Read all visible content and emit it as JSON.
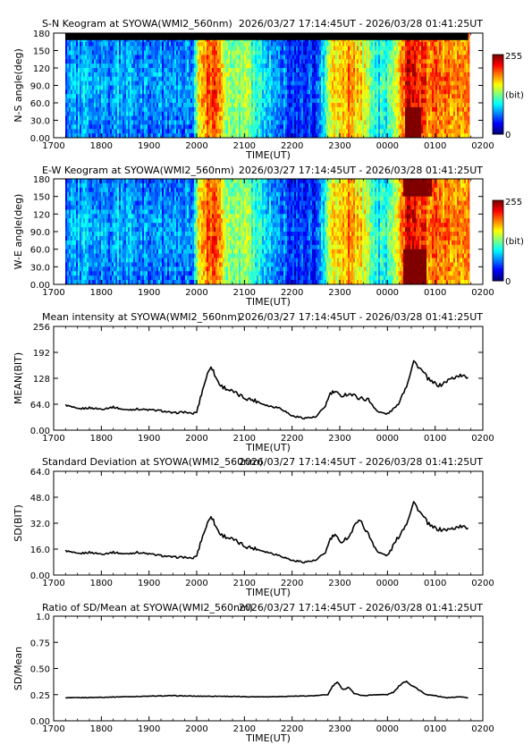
{
  "chart_data": [
    {
      "type": "heatmap",
      "title": "S-N Keogram at SYOWA(WMI2_560nm)",
      "subtitle": "2026/03/27 17:14:45UT - 2026/03/28 01:41:25UT",
      "xlabel": "TIME(UT)",
      "ylabel": "N-S angle(deg)",
      "xlim": [
        17.0,
        26.0
      ],
      "x_ticks": [
        "1700",
        "1800",
        "1900",
        "2000",
        "2100",
        "2200",
        "2300",
        "0000",
        "0100",
        "0200"
      ],
      "ylim": [
        0,
        180
      ],
      "y_ticks": [
        "0.00",
        "30.0",
        "60.0",
        "90.0",
        "120",
        "150",
        "180"
      ],
      "data_range_hours": [
        17.246,
        25.69
      ],
      "colorbar": {
        "min": "0",
        "max": "255",
        "unit": "(bit)"
      },
      "activity": [
        [
          17.25,
          0.25
        ],
        [
          17.6,
          0.34
        ],
        [
          18.0,
          0.3
        ],
        [
          18.5,
          0.31
        ],
        [
          19.0,
          0.3
        ],
        [
          19.5,
          0.26
        ],
        [
          19.9,
          0.3
        ],
        [
          20.05,
          0.72
        ],
        [
          20.35,
          0.88
        ],
        [
          20.55,
          0.6
        ],
        [
          21.0,
          0.52
        ],
        [
          21.5,
          0.35
        ],
        [
          22.0,
          0.2
        ],
        [
          22.5,
          0.19
        ],
        [
          22.8,
          0.62
        ],
        [
          23.2,
          0.76
        ],
        [
          23.5,
          0.62
        ],
        [
          23.8,
          0.4
        ],
        [
          24.1,
          0.5
        ],
        [
          24.4,
          0.94
        ],
        [
          24.9,
          0.8
        ],
        [
          25.5,
          0.75
        ],
        [
          25.69,
          0.75
        ]
      ],
      "features": {
        "black_band_deg": [
          168,
          180
        ],
        "bright_region": {
          "x": [
            24.35,
            24.7
          ],
          "deg": [
            0,
            55
          ]
        }
      }
    },
    {
      "type": "heatmap",
      "title": "E-W Keogram at SYOWA(WMI2_560nm)",
      "subtitle": "2026/03/27 17:14:45UT - 2026/03/28 01:41:25UT",
      "xlabel": "TIME(UT)",
      "ylabel": "W-E angle(deg)",
      "xlim": [
        17.0,
        26.0
      ],
      "x_ticks": [
        "1700",
        "1800",
        "1900",
        "2000",
        "2100",
        "2200",
        "2300",
        "0000",
        "0100",
        "0200"
      ],
      "ylim": [
        0,
        180
      ],
      "y_ticks": [
        "0.00",
        "30.0",
        "60.0",
        "90.0",
        "120",
        "150",
        "180"
      ],
      "data_range_hours": [
        17.246,
        25.69
      ],
      "colorbar": {
        "min": "0",
        "max": "255",
        "unit": "(bit)"
      },
      "activity": [
        [
          17.25,
          0.25
        ],
        [
          17.6,
          0.34
        ],
        [
          18.0,
          0.3
        ],
        [
          18.5,
          0.31
        ],
        [
          19.0,
          0.3
        ],
        [
          19.5,
          0.26
        ],
        [
          19.9,
          0.3
        ],
        [
          20.05,
          0.72
        ],
        [
          20.35,
          0.88
        ],
        [
          20.55,
          0.6
        ],
        [
          21.0,
          0.52
        ],
        [
          21.5,
          0.35
        ],
        [
          22.0,
          0.2
        ],
        [
          22.5,
          0.19
        ],
        [
          22.8,
          0.62
        ],
        [
          23.2,
          0.76
        ],
        [
          23.5,
          0.62
        ],
        [
          23.8,
          0.4
        ],
        [
          24.1,
          0.5
        ],
        [
          24.4,
          0.94
        ],
        [
          24.9,
          0.8
        ],
        [
          25.5,
          0.75
        ],
        [
          25.69,
          0.75
        ]
      ],
      "features": {
        "bright_regions": [
          {
            "x": [
              24.3,
              24.9
            ],
            "deg": [
              150,
              180
            ]
          },
          {
            "x": [
              24.3,
              24.8
            ],
            "deg": [
              0,
              60
            ]
          }
        ]
      }
    },
    {
      "type": "line",
      "title": "Mean intensity at SYOWA(WMI2_560nm)",
      "subtitle": "2026/03/27 17:14:45UT - 2026/03/28 01:41:25UT",
      "xlabel": "TIME(UT)",
      "ylabel": "MEAN(BIT)",
      "xlim": [
        17.0,
        26.0
      ],
      "x_ticks": [
        "1700",
        "1800",
        "1900",
        "2000",
        "2100",
        "2200",
        "2300",
        "0000",
        "0100",
        "0200"
      ],
      "ylim": [
        0,
        256
      ],
      "y_ticks": [
        "0.00",
        "64.0",
        "128",
        "192",
        "256"
      ],
      "series": [
        {
          "values": [
            [
              17.25,
              62
            ],
            [
              17.5,
              52
            ],
            [
              17.75,
              55
            ],
            [
              18.0,
              52
            ],
            [
              18.25,
              57
            ],
            [
              18.5,
              50
            ],
            [
              18.75,
              52
            ],
            [
              19.0,
              50
            ],
            [
              19.25,
              48
            ],
            [
              19.5,
              42
            ],
            [
              19.75,
              45
            ],
            [
              19.9,
              40
            ],
            [
              20.0,
              45
            ],
            [
              20.1,
              90
            ],
            [
              20.2,
              130
            ],
            [
              20.3,
              160
            ],
            [
              20.4,
              130
            ],
            [
              20.5,
              110
            ],
            [
              20.75,
              95
            ],
            [
              21.0,
              80
            ],
            [
              21.25,
              72
            ],
            [
              21.5,
              60
            ],
            [
              21.75,
              55
            ],
            [
              22.0,
              35
            ],
            [
              22.25,
              30
            ],
            [
              22.5,
              32
            ],
            [
              22.7,
              60
            ],
            [
              22.8,
              90
            ],
            [
              22.9,
              95
            ],
            [
              23.0,
              85
            ],
            [
              23.2,
              90
            ],
            [
              23.4,
              80
            ],
            [
              23.6,
              75
            ],
            [
              23.8,
              45
            ],
            [
              24.0,
              40
            ],
            [
              24.2,
              60
            ],
            [
              24.4,
              110
            ],
            [
              24.55,
              170
            ],
            [
              24.7,
              150
            ],
            [
              24.9,
              120
            ],
            [
              25.1,
              110
            ],
            [
              25.3,
              125
            ],
            [
              25.5,
              135
            ],
            [
              25.69,
              130
            ]
          ]
        }
      ]
    },
    {
      "type": "line",
      "title": "Standard Deviation at SYOWA(WMI2_560nm)",
      "subtitle": "2026/03/27 17:14:45UT - 2026/03/28 01:41:25UT",
      "xlabel": "TIME(UT)",
      "ylabel": "SD(BIT)",
      "xlim": [
        17.0,
        26.0
      ],
      "x_ticks": [
        "1700",
        "1800",
        "1900",
        "2000",
        "2100",
        "2200",
        "2300",
        "0000",
        "0100",
        "0200"
      ],
      "ylim": [
        0,
        64
      ],
      "y_ticks": [
        "0.00",
        "16.0",
        "32.0",
        "48.0",
        "64.0"
      ],
      "series": [
        {
          "values": [
            [
              17.25,
              15
            ],
            [
              17.5,
              13
            ],
            [
              17.75,
              14
            ],
            [
              18.0,
              13
            ],
            [
              18.25,
              14
            ],
            [
              18.5,
              13
            ],
            [
              18.75,
              14
            ],
            [
              19.0,
              13
            ],
            [
              19.25,
              12
            ],
            [
              19.5,
              11
            ],
            [
              19.75,
              11
            ],
            [
              19.9,
              10
            ],
            [
              20.0,
              12
            ],
            [
              20.1,
              22
            ],
            [
              20.2,
              30
            ],
            [
              20.3,
              37
            ],
            [
              20.4,
              30
            ],
            [
              20.5,
              25
            ],
            [
              20.75,
              22
            ],
            [
              21.0,
              18
            ],
            [
              21.25,
              16
            ],
            [
              21.5,
              14
            ],
            [
              21.75,
              12
            ],
            [
              22.0,
              9
            ],
            [
              22.25,
              8
            ],
            [
              22.5,
              9
            ],
            [
              22.7,
              14
            ],
            [
              22.8,
              22
            ],
            [
              22.9,
              25
            ],
            [
              23.0,
              20
            ],
            [
              23.2,
              24
            ],
            [
              23.4,
              35
            ],
            [
              23.6,
              25
            ],
            [
              23.8,
              14
            ],
            [
              24.0,
              12
            ],
            [
              24.2,
              22
            ],
            [
              24.4,
              32
            ],
            [
              24.55,
              45
            ],
            [
              24.7,
              38
            ],
            [
              24.9,
              30
            ],
            [
              25.1,
              28
            ],
            [
              25.3,
              28
            ],
            [
              25.5,
              30
            ],
            [
              25.69,
              29
            ]
          ]
        }
      ]
    },
    {
      "type": "line",
      "title": "Ratio of SD/Mean at SYOWA(WMI2_560nm)",
      "subtitle": "2026/03/27 17:14:45UT - 2026/03/28 01:41:25UT",
      "xlabel": "TIME(UT)",
      "ylabel": "SD/Mean",
      "xlim": [
        17.0,
        26.0
      ],
      "x_ticks": [
        "1700",
        "1800",
        "1900",
        "2000",
        "2100",
        "2200",
        "2300",
        "0000",
        "0100",
        "0200"
      ],
      "ylim": [
        0,
        1.0
      ],
      "y_ticks": [
        "0.00",
        "0.25",
        "0.50",
        "0.75",
        "1.0"
      ],
      "series": [
        {
          "values": [
            [
              17.25,
              0.22
            ],
            [
              17.5,
              0.22
            ],
            [
              18.0,
              0.225
            ],
            [
              18.5,
              0.23
            ],
            [
              19.0,
              0.235
            ],
            [
              19.5,
              0.24
            ],
            [
              20.0,
              0.235
            ],
            [
              20.5,
              0.235
            ],
            [
              21.0,
              0.23
            ],
            [
              21.5,
              0.23
            ],
            [
              22.0,
              0.235
            ],
            [
              22.5,
              0.24
            ],
            [
              22.75,
              0.25
            ],
            [
              22.85,
              0.33
            ],
            [
              22.95,
              0.37
            ],
            [
              23.05,
              0.3
            ],
            [
              23.2,
              0.32
            ],
            [
              23.3,
              0.26
            ],
            [
              23.5,
              0.24
            ],
            [
              23.75,
              0.25
            ],
            [
              24.0,
              0.25
            ],
            [
              24.15,
              0.28
            ],
            [
              24.3,
              0.36
            ],
            [
              24.4,
              0.38
            ],
            [
              24.5,
              0.34
            ],
            [
              24.65,
              0.3
            ],
            [
              24.8,
              0.25
            ],
            [
              25.0,
              0.24
            ],
            [
              25.25,
              0.22
            ],
            [
              25.5,
              0.23
            ],
            [
              25.69,
              0.22
            ]
          ]
        }
      ]
    }
  ]
}
